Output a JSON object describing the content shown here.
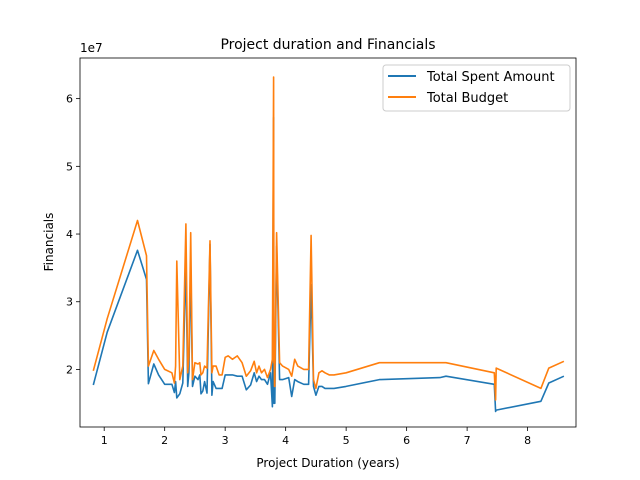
{
  "chart_data": {
    "type": "line",
    "title": "Project duration and Financials",
    "xlabel": "Project Duration (years)",
    "ylabel": "Financials",
    "y_offset_text": "1e7",
    "xlim": [
      0.6,
      8.8
    ],
    "ylim": [
      1.15,
      6.6
    ],
    "xticks": [
      1,
      2,
      3,
      4,
      5,
      6,
      7,
      8
    ],
    "yticks": [
      2,
      3,
      4,
      5,
      6
    ],
    "grid": false,
    "legend_position": "top-right",
    "series": [
      {
        "name": "Total Spent Amount",
        "color": "#1f77b4",
        "x": [
          0.82,
          1.05,
          1.55,
          1.7,
          1.73,
          1.82,
          1.9,
          2.0,
          2.12,
          2.16,
          2.18,
          2.2,
          2.25,
          2.3,
          2.35,
          2.38,
          2.4,
          2.43,
          2.46,
          2.5,
          2.55,
          2.58,
          2.6,
          2.63,
          2.66,
          2.7,
          2.75,
          2.78,
          2.8,
          2.85,
          2.9,
          2.95,
          3.0,
          3.05,
          3.12,
          3.2,
          3.28,
          3.35,
          3.42,
          3.48,
          3.52,
          3.56,
          3.6,
          3.65,
          3.7,
          3.75,
          3.78,
          3.8,
          3.805,
          3.81,
          3.815,
          3.82,
          3.85,
          3.9,
          3.95,
          4.05,
          4.1,
          4.15,
          4.2,
          4.3,
          4.38,
          4.42,
          4.46,
          4.5,
          4.55,
          4.6,
          4.65,
          4.72,
          4.8,
          5.0,
          5.55,
          6.55,
          6.65,
          7.45,
          7.47,
          7.48,
          8.22,
          8.35,
          8.6
        ],
        "values": [
          1.77,
          2.55,
          3.76,
          3.33,
          1.79,
          2.08,
          1.92,
          1.78,
          1.78,
          1.66,
          1.82,
          1.58,
          1.64,
          1.8,
          3.6,
          1.75,
          1.95,
          3.55,
          1.75,
          1.9,
          1.85,
          1.92,
          1.64,
          1.68,
          1.82,
          1.65,
          3.85,
          1.62,
          1.82,
          1.72,
          1.72,
          1.72,
          1.92,
          1.92,
          1.92,
          1.9,
          1.9,
          1.7,
          1.77,
          1.95,
          1.82,
          1.9,
          1.85,
          1.85,
          1.78,
          1.95,
          1.45,
          5.72,
          1.5,
          2.08,
          1.5,
          1.5,
          3.82,
          1.85,
          1.85,
          1.88,
          1.6,
          1.85,
          1.82,
          1.78,
          1.78,
          3.25,
          1.75,
          1.62,
          1.75,
          1.75,
          1.72,
          1.72,
          1.72,
          1.75,
          1.85,
          1.88,
          1.9,
          1.78,
          1.38,
          1.4,
          1.53,
          1.8,
          1.9
        ]
      },
      {
        "name": "Total Budget",
        "color": "#ff7f0e",
        "x": [
          0.82,
          1.05,
          1.55,
          1.7,
          1.73,
          1.82,
          1.9,
          2.0,
          2.12,
          2.16,
          2.18,
          2.2,
          2.25,
          2.3,
          2.35,
          2.38,
          2.4,
          2.43,
          2.46,
          2.5,
          2.55,
          2.58,
          2.6,
          2.63,
          2.66,
          2.7,
          2.75,
          2.78,
          2.8,
          2.85,
          2.9,
          2.95,
          3.0,
          3.05,
          3.12,
          3.2,
          3.28,
          3.35,
          3.42,
          3.48,
          3.52,
          3.56,
          3.6,
          3.65,
          3.7,
          3.75,
          3.78,
          3.8,
          3.805,
          3.81,
          3.815,
          3.82,
          3.85,
          3.9,
          3.95,
          4.05,
          4.1,
          4.15,
          4.2,
          4.3,
          4.38,
          4.42,
          4.46,
          4.5,
          4.55,
          4.6,
          4.65,
          4.72,
          4.8,
          5.0,
          5.55,
          6.55,
          6.65,
          7.45,
          7.47,
          7.48,
          8.22,
          8.35,
          8.6
        ],
        "values": [
          1.98,
          2.75,
          4.2,
          3.68,
          2.05,
          2.28,
          2.15,
          2.0,
          1.95,
          1.8,
          2.05,
          3.6,
          1.85,
          2.05,
          4.15,
          1.95,
          2.2,
          4.02,
          1.85,
          2.1,
          2.08,
          2.1,
          1.92,
          1.95,
          2.05,
          2.02,
          3.9,
          1.95,
          2.05,
          2.05,
          1.92,
          1.92,
          2.18,
          2.2,
          2.15,
          2.2,
          2.1,
          1.9,
          1.98,
          2.12,
          1.95,
          2.05,
          1.95,
          2.0,
          1.88,
          2.0,
          2.15,
          6.32,
          2.1,
          2.25,
          1.75,
          1.75,
          4.02,
          2.1,
          2.05,
          2.0,
          1.9,
          2.15,
          2.05,
          2.0,
          2.0,
          3.98,
          1.85,
          1.72,
          1.95,
          1.98,
          1.95,
          1.92,
          1.92,
          1.95,
          2.1,
          2.1,
          2.1,
          1.95,
          1.55,
          2.02,
          1.72,
          2.02,
          2.12
        ]
      }
    ]
  }
}
